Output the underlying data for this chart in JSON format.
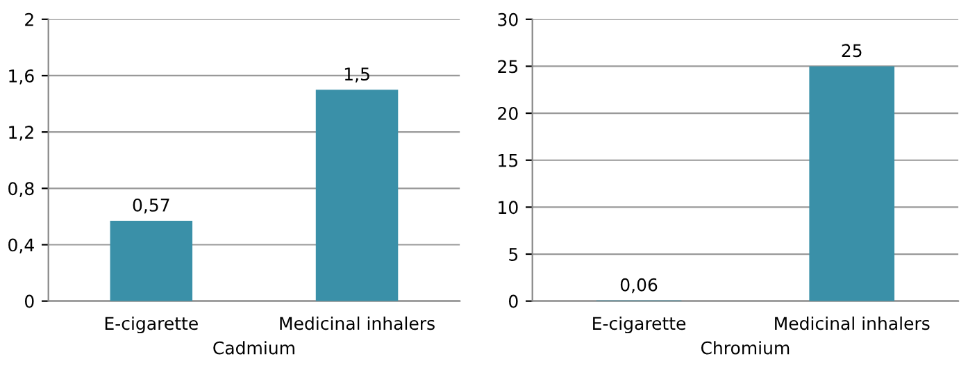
{
  "chart_data": [
    {
      "type": "bar",
      "categories": [
        "E-cigarette",
        "Medicinal inhalers"
      ],
      "values": [
        0.57,
        1.5
      ],
      "value_labels": [
        "0,57",
        "1,5"
      ],
      "color": "#3a90a8",
      "xlabel": "Cadmium",
      "ylim": [
        0,
        2
      ],
      "yticks": [
        0,
        {
          "value": 0.4,
          "label": "0,4"
        },
        {
          "value": 0.8,
          "label": "0,8"
        },
        {
          "value": 1.2,
          "label": "1,2"
        },
        {
          "value": 1.6,
          "label": "1,6"
        },
        2
      ],
      "grid": "y"
    },
    {
      "type": "bar",
      "categories": [
        "E-cigarette",
        "Medicinal inhalers"
      ],
      "values": [
        0.06,
        25
      ],
      "value_labels": [
        "0,06",
        "25"
      ],
      "color": "#3a90a8",
      "xlabel": "Chromium",
      "ylim": [
        0,
        30
      ],
      "yticks": [
        0,
        5,
        10,
        15,
        20,
        25,
        30
      ],
      "grid": "y"
    }
  ]
}
